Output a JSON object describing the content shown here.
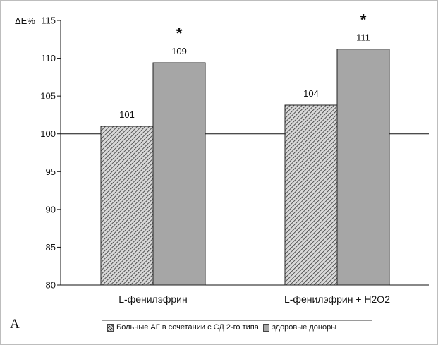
{
  "panel_letter": "A",
  "chart_data": {
    "type": "bar",
    "ylabel": "ΔE%",
    "xlabel": "",
    "ylim": [
      80,
      115
    ],
    "yticks": [
      80,
      85,
      90,
      95,
      100,
      105,
      110,
      115
    ],
    "reference_line": 100,
    "grid": false,
    "categories": [
      "L-фенилэфрин",
      "L-фенилэфрин + H2O2"
    ],
    "series": [
      {
        "name": "Больные АГ в сочетании с СД 2-го типа",
        "values": [
          101,
          103.8
        ],
        "labels": [
          "101",
          "104"
        ],
        "fill": "hatched",
        "color": "#d9d9d9",
        "hatch_color": "#333333"
      },
      {
        "name": "здоровые доноры",
        "values": [
          109.4,
          111.2
        ],
        "labels": [
          "109",
          "111"
        ],
        "fill": "solid",
        "color": "#a6a6a6"
      }
    ],
    "significance_marks": [
      {
        "category_index": 0,
        "series_index": 1,
        "mark": "*"
      },
      {
        "category_index": 1,
        "series_index": 1,
        "mark": "*"
      }
    ],
    "legend_position": "bottom"
  }
}
